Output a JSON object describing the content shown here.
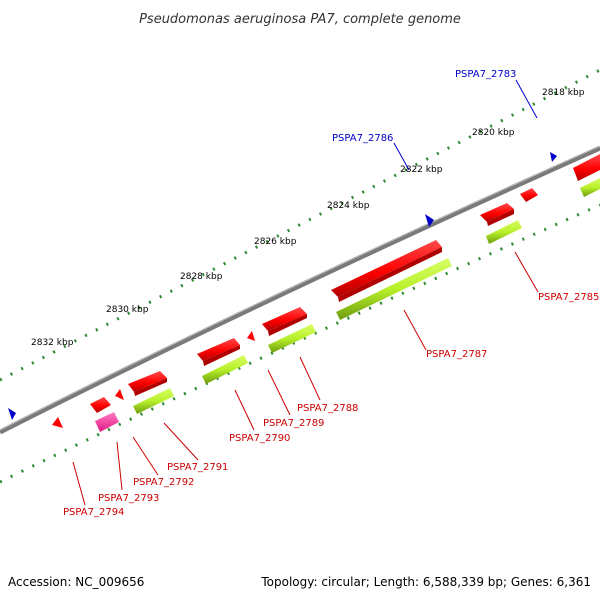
{
  "title": "Pseudomonas aeruginosa PA7, complete genome",
  "footer": {
    "accession": "Accession: NC_009656",
    "summary": "Topology: circular; Length: 6,588,339 bp; Genes: 6,361"
  },
  "scale": {
    "ticks": [
      "2818 kbp",
      "2820 kbp",
      "2822 kbp",
      "2824 kbp",
      "2826 kbp",
      "2828 kbp",
      "2830 kbp",
      "2832 kbp"
    ]
  },
  "genes": [
    {
      "id": "PSPA7_2783",
      "color": "#0000cc"
    },
    {
      "id": "PSPA7_2785",
      "color": "#cc0000"
    },
    {
      "id": "PSPA7_2786",
      "color": "#0000cc"
    },
    {
      "id": "PSPA7_2787",
      "color": "#cc0000"
    },
    {
      "id": "PSPA7_2788",
      "color": "#cc0000"
    },
    {
      "id": "PSPA7_2789",
      "color": "#cc0000"
    },
    {
      "id": "PSPA7_2790",
      "color": "#cc0000"
    },
    {
      "id": "PSPA7_2791",
      "color": "#cc0000"
    },
    {
      "id": "PSPA7_2792",
      "color": "#cc0000"
    },
    {
      "id": "PSPA7_2793",
      "color": "#cc0000"
    },
    {
      "id": "PSPA7_2794",
      "color": "#cc0000"
    }
  ],
  "colors": {
    "backbone": "#7a7a7a",
    "cds": "#ff0000",
    "gene_green": "#b8f02a",
    "rna": "#ff3fa0",
    "trna": "#0000cc",
    "tick": "#2e8b2e"
  }
}
